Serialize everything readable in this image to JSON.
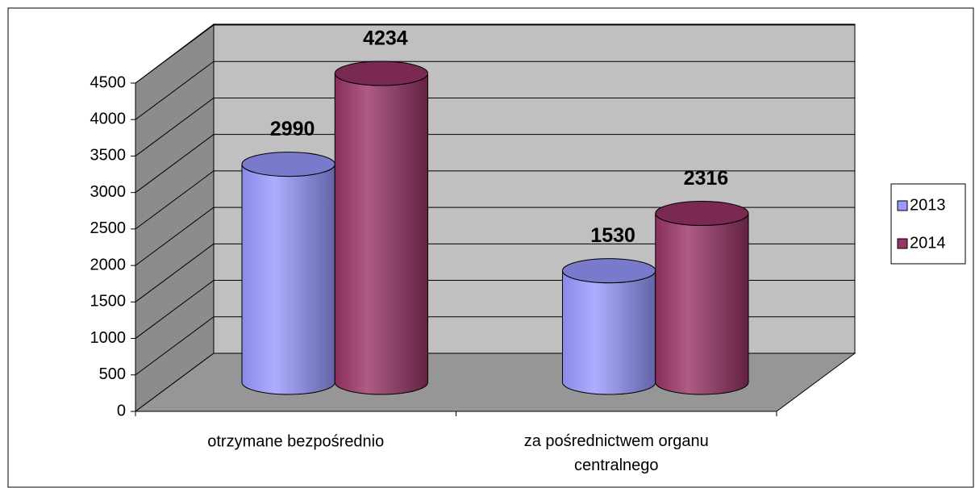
{
  "chart_data": {
    "type": "bar3d",
    "categories": [
      "otrzymane bezpośrednio",
      "za pośrednictwem organu centralnego"
    ],
    "series": [
      {
        "name": "2013",
        "color": "#9999ff",
        "values": [
          2990,
          1530
        ]
      },
      {
        "name": "2014",
        "color": "#993366",
        "values": [
          4234,
          2316
        ]
      }
    ],
    "ylim": [
      0,
      4500
    ],
    "yticks": [
      0,
      500,
      1000,
      1500,
      2000,
      2500,
      3000,
      3500,
      4000,
      4500
    ],
    "grid": true,
    "legend": "right"
  }
}
